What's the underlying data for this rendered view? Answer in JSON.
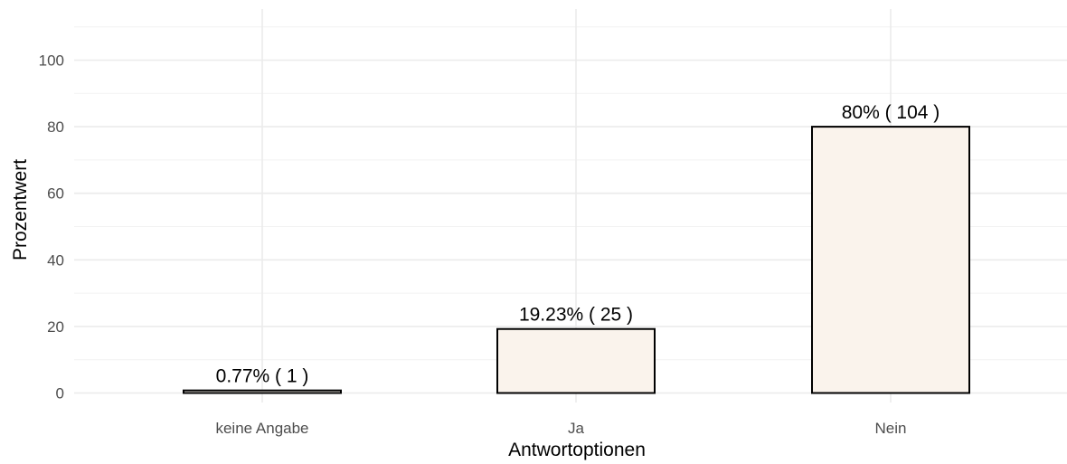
{
  "chart_data": {
    "type": "bar",
    "categories": [
      "keine Angabe",
      "Ja",
      "Nein"
    ],
    "values": [
      0.77,
      19.23,
      80
    ],
    "counts": [
      1,
      25,
      104
    ],
    "labels": [
      "0.77% ( 1 )",
      "19.23% ( 25 )",
      "80% ( 104 )"
    ],
    "xlabel": "Antwortoptionen",
    "ylabel": "Prozentwert",
    "ylim": [
      0,
      110
    ],
    "yticks": [
      0,
      20,
      40,
      60,
      80,
      100
    ],
    "ytick_labels": [
      "0",
      "20",
      "40",
      "60",
      "80",
      "100"
    ],
    "grid": true,
    "colors": {
      "bar_fill": "#faf3ec",
      "bar_stroke": "#000000",
      "background": "#ffffff"
    }
  }
}
